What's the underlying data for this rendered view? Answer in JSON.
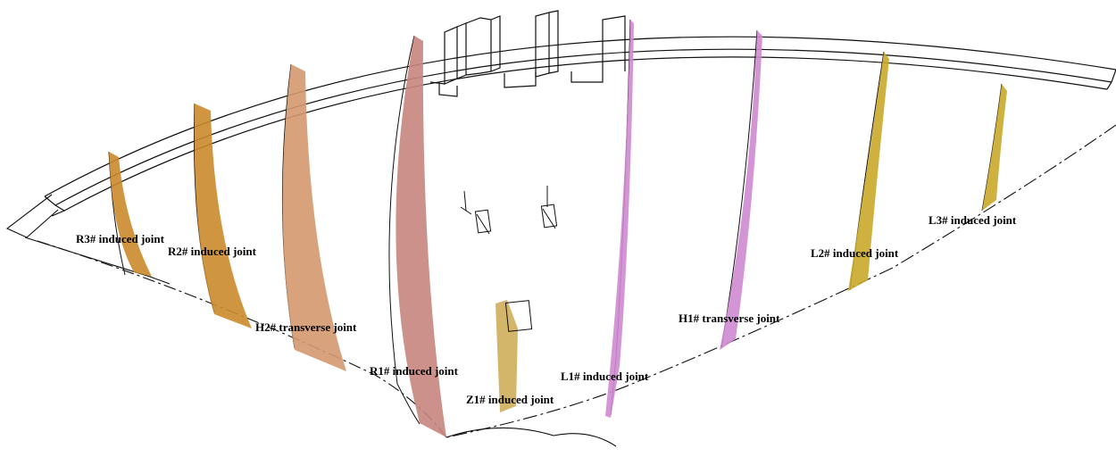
{
  "colors": {
    "outline": "#111111",
    "orange_joint": "#cc8a2c",
    "tan_joint": "#d49870",
    "brick_joint": "#c7867f",
    "pink_joint": "#cf8ad2",
    "gold_joint": "#c9a82a",
    "z1_joint": "#cfae5a"
  },
  "joints": [
    {
      "id": "R3",
      "label": "R3# induced joint",
      "color_key": "orange_joint"
    },
    {
      "id": "R2",
      "label": "R2# induced joint",
      "color_key": "orange_joint"
    },
    {
      "id": "H2",
      "label": "H2# transverse joint",
      "color_key": "tan_joint"
    },
    {
      "id": "R1",
      "label": "R1# induced joint",
      "color_key": "brick_joint"
    },
    {
      "id": "Z1",
      "label": "Z1# induced joint",
      "color_key": "z1_joint"
    },
    {
      "id": "L1",
      "label": "L1# induced joint",
      "color_key": "pink_joint"
    },
    {
      "id": "H1",
      "label": "H1# transverse joint",
      "color_key": "pink_joint"
    },
    {
      "id": "L2",
      "label": "L2# induced joint",
      "color_key": "gold_joint"
    },
    {
      "id": "L3",
      "label": "L3# induced joint",
      "color_key": "gold_joint"
    }
  ]
}
